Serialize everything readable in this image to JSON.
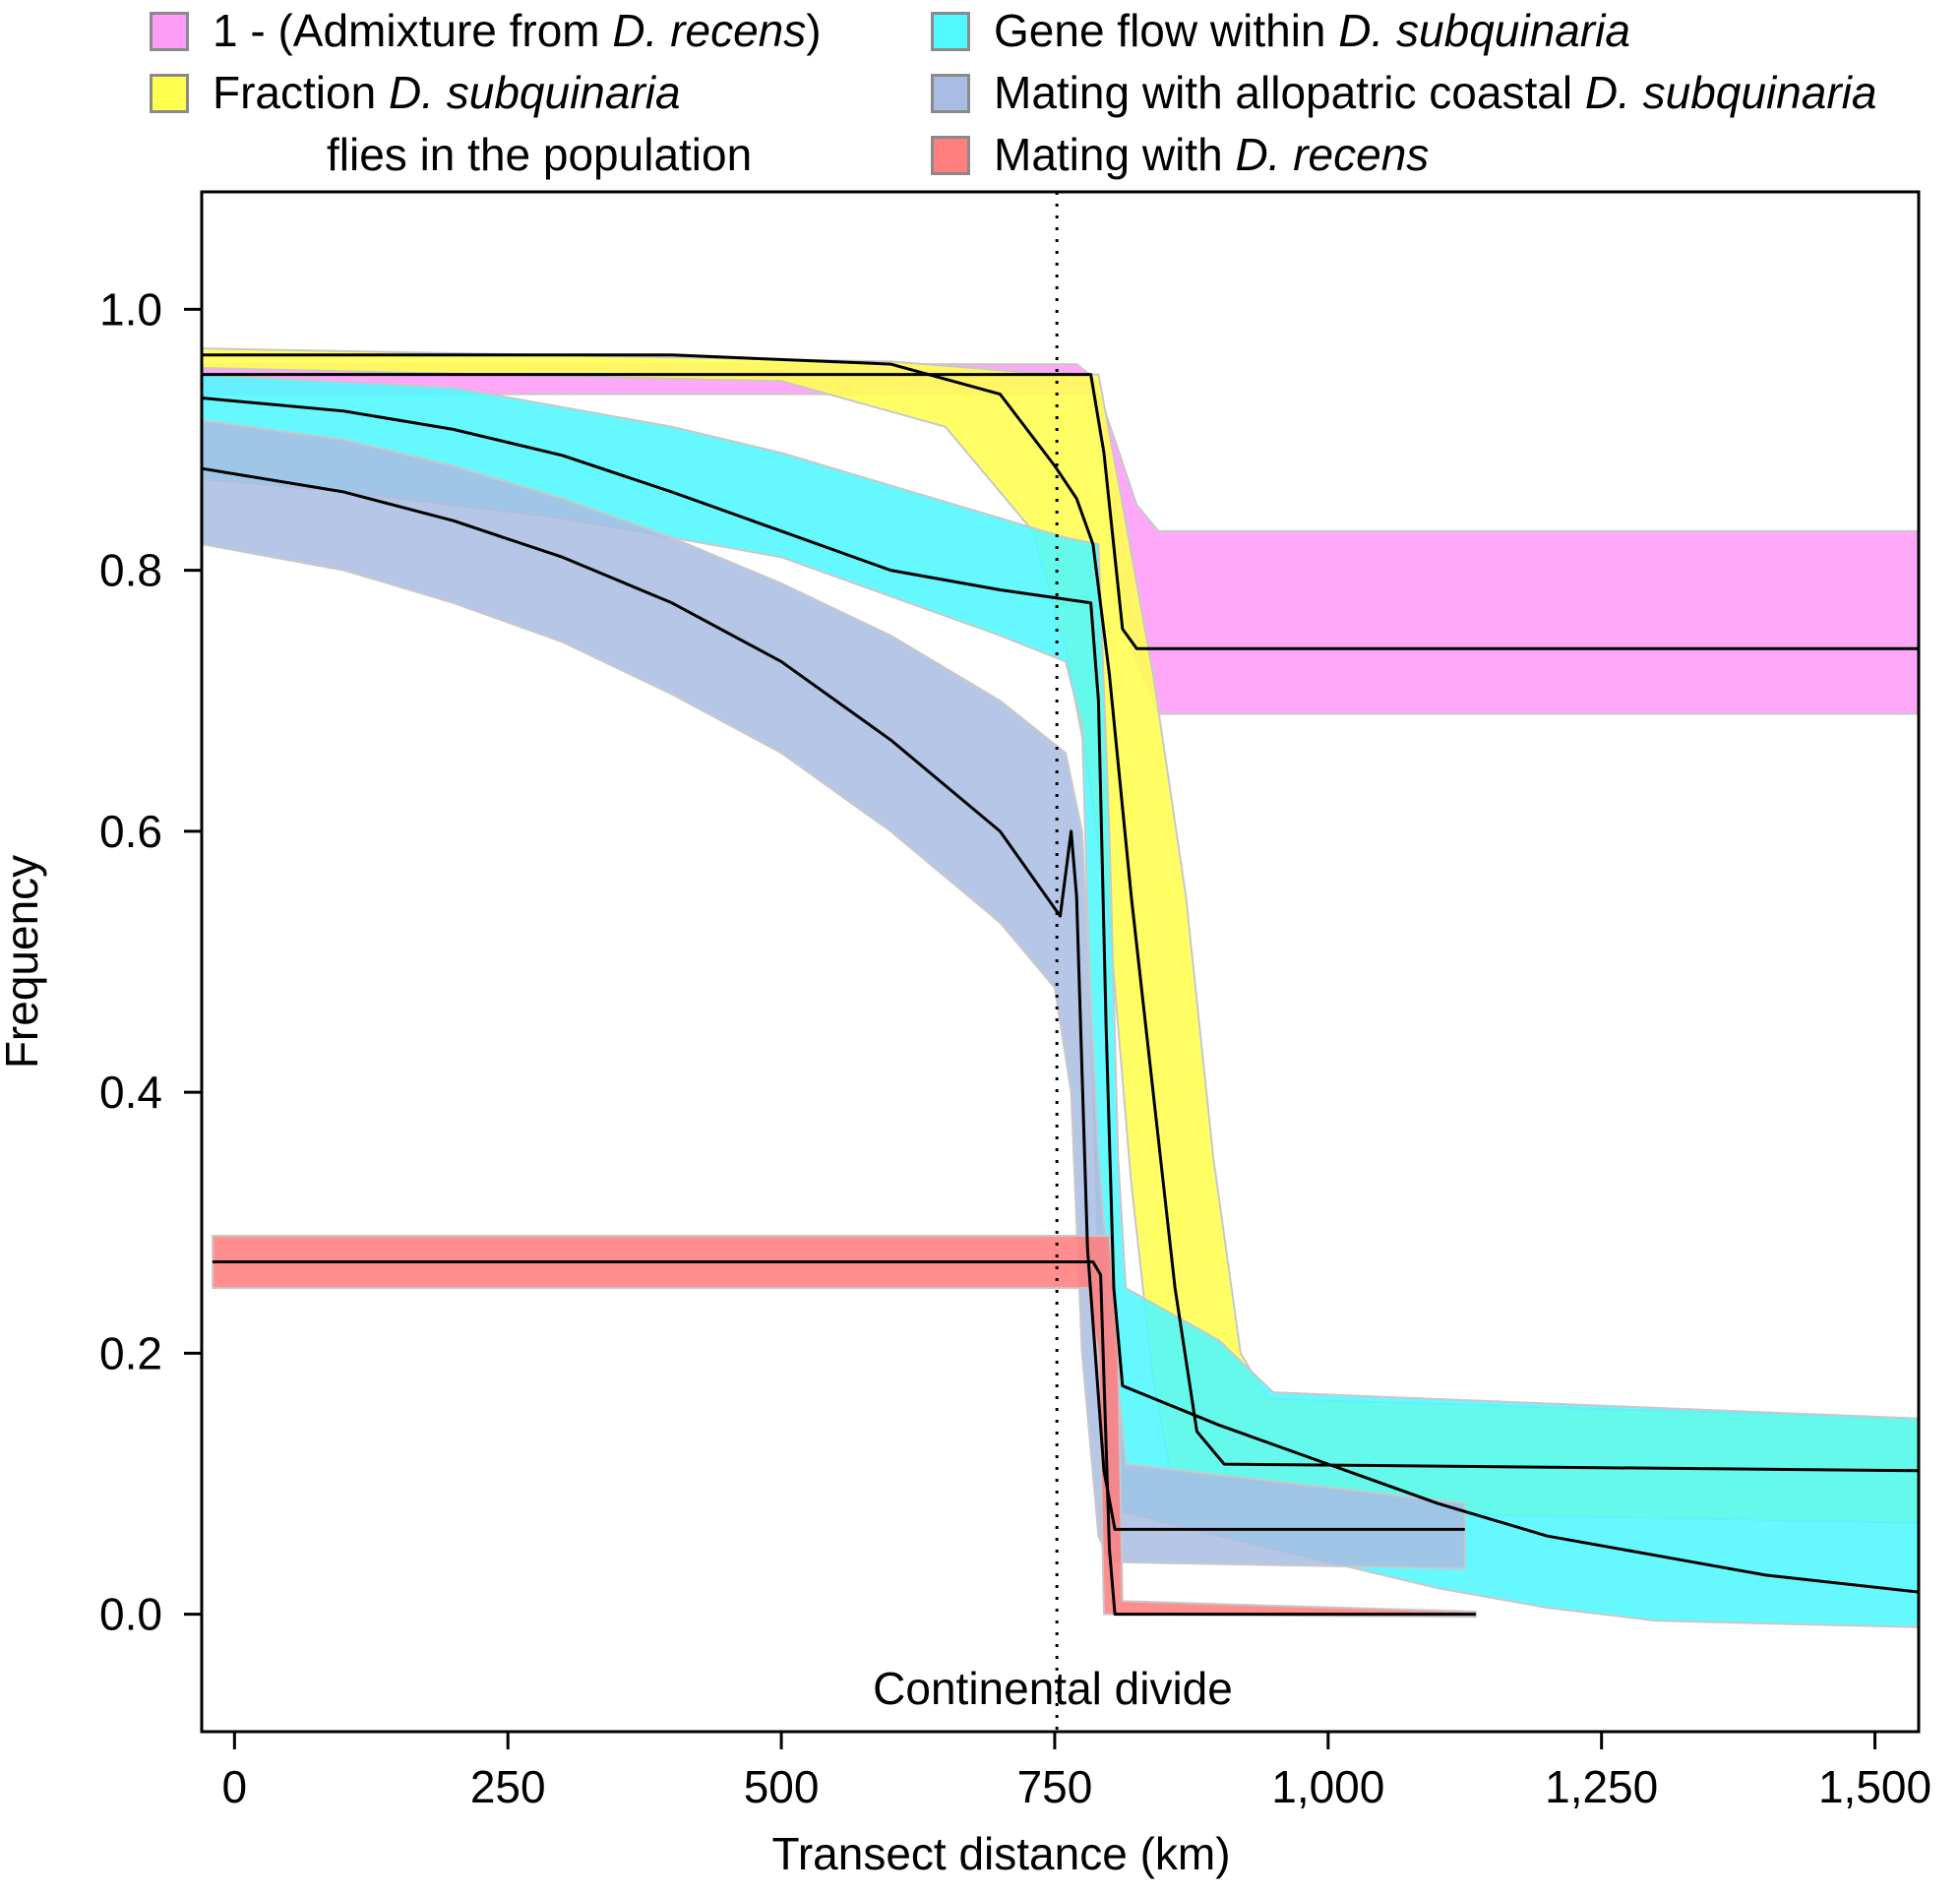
{
  "chart_data": {
    "type": "line",
    "xlabel": "Transect distance (km)",
    "ylabel": "Frequency",
    "xlim": [
      -30,
      1540
    ],
    "ylim": [
      -0.09,
      1.09
    ],
    "x_ticks": [
      0,
      250,
      500,
      750,
      1000,
      1250,
      1500
    ],
    "x_tick_labels": [
      "0",
      "250",
      "500",
      "750",
      "1,000",
      "1,250",
      "1,500"
    ],
    "y_ticks": [
      0.0,
      0.2,
      0.4,
      0.6,
      0.8,
      1.0
    ],
    "y_tick_labels": [
      "0.0",
      "0.2",
      "0.4",
      "0.6",
      "0.8",
      "1.0"
    ],
    "grid": false,
    "legend_position": "top",
    "annotations": [
      {
        "text": "Continental divide",
        "x": 752,
        "type": "vertical-dotted-line"
      }
    ],
    "series": [
      {
        "name_parts": [
          "1 - (Admixture from ",
          "D. recens",
          ")"
        ],
        "color": "#ff9cf8",
        "line": [
          [
            -30,
            0.95
          ],
          [
            783,
            0.95
          ],
          [
            795,
            0.89
          ],
          [
            812,
            0.755
          ],
          [
            825,
            0.74
          ],
          [
            1540,
            0.74
          ]
        ],
        "band_upper": [
          [
            -30,
            0.958
          ],
          [
            770,
            0.958
          ],
          [
            785,
            0.948
          ],
          [
            805,
            0.9
          ],
          [
            825,
            0.85
          ],
          [
            845,
            0.83
          ],
          [
            1540,
            0.83
          ]
        ],
        "band_lower": [
          [
            -30,
            0.935
          ],
          [
            785,
            0.935
          ],
          [
            800,
            0.84
          ],
          [
            820,
            0.74
          ],
          [
            845,
            0.69
          ],
          [
            1540,
            0.69
          ]
        ]
      },
      {
        "name_parts": [
          "Fraction ",
          "D. subquinaria",
          " flies in the population"
        ],
        "color": "#ffff50",
        "line": [
          [
            -30,
            0.965
          ],
          [
            400,
            0.965
          ],
          [
            600,
            0.958
          ],
          [
            700,
            0.935
          ],
          [
            750,
            0.88
          ],
          [
            770,
            0.855
          ],
          [
            785,
            0.82
          ],
          [
            800,
            0.72
          ],
          [
            820,
            0.55
          ],
          [
            840,
            0.4
          ],
          [
            860,
            0.25
          ],
          [
            880,
            0.14
          ],
          [
            905,
            0.115
          ],
          [
            1540,
            0.11
          ]
        ],
        "band_upper": [
          [
            -30,
            0.97
          ],
          [
            600,
            0.96
          ],
          [
            720,
            0.952
          ],
          [
            790,
            0.95
          ],
          [
            810,
            0.86
          ],
          [
            840,
            0.72
          ],
          [
            870,
            0.55
          ],
          [
            895,
            0.35
          ],
          [
            920,
            0.2
          ],
          [
            945,
            0.165
          ],
          [
            1540,
            0.15
          ]
        ],
        "band_lower": [
          [
            -30,
            0.955
          ],
          [
            500,
            0.945
          ],
          [
            650,
            0.91
          ],
          [
            730,
            0.83
          ],
          [
            760,
            0.74
          ],
          [
            780,
            0.65
          ],
          [
            800,
            0.53
          ],
          [
            820,
            0.33
          ],
          [
            840,
            0.18
          ],
          [
            860,
            0.09
          ],
          [
            890,
            0.08
          ],
          [
            1540,
            0.07
          ]
        ]
      },
      {
        "name_parts": [
          "Gene flow within ",
          "D. subquinaria"
        ],
        "color": "#50f8ff",
        "line": [
          [
            -30,
            0.932
          ],
          [
            100,
            0.922
          ],
          [
            200,
            0.908
          ],
          [
            300,
            0.888
          ],
          [
            400,
            0.86
          ],
          [
            500,
            0.83
          ],
          [
            600,
            0.8
          ],
          [
            700,
            0.785
          ],
          [
            783,
            0.775
          ],
          [
            790,
            0.7
          ],
          [
            797,
            0.45
          ],
          [
            804,
            0.25
          ],
          [
            812,
            0.175
          ],
          [
            900,
            0.145
          ],
          [
            1000,
            0.115
          ],
          [
            1100,
            0.085
          ],
          [
            1200,
            0.06
          ],
          [
            1300,
            0.045
          ],
          [
            1400,
            0.03
          ],
          [
            1540,
            0.017
          ]
        ],
        "band_upper": [
          [
            -30,
            0.95
          ],
          [
            200,
            0.94
          ],
          [
            400,
            0.91
          ],
          [
            500,
            0.89
          ],
          [
            600,
            0.865
          ],
          [
            700,
            0.84
          ],
          [
            760,
            0.825
          ],
          [
            790,
            0.82
          ],
          [
            800,
            0.6
          ],
          [
            808,
            0.35
          ],
          [
            815,
            0.25
          ],
          [
            900,
            0.21
          ],
          [
            950,
            0.17
          ],
          [
            1540,
            0.15
          ]
        ],
        "band_lower": [
          [
            -30,
            0.87
          ],
          [
            100,
            0.86
          ],
          [
            300,
            0.84
          ],
          [
            500,
            0.81
          ],
          [
            600,
            0.78
          ],
          [
            700,
            0.75
          ],
          [
            760,
            0.73
          ],
          [
            775,
            0.68
          ],
          [
            785,
            0.4
          ],
          [
            793,
            0.2
          ],
          [
            805,
            0.08
          ],
          [
            900,
            0.06
          ],
          [
            1000,
            0.04
          ],
          [
            1100,
            0.02
          ],
          [
            1200,
            0.005
          ],
          [
            1300,
            -0.005
          ],
          [
            1540,
            -0.01
          ]
        ]
      },
      {
        "name_parts": [
          "Mating with allopatric coastal ",
          "D. subquinaria"
        ],
        "color": "#a9bce3",
        "line": [
          [
            -30,
            0.878
          ],
          [
            100,
            0.86
          ],
          [
            200,
            0.838
          ],
          [
            300,
            0.81
          ],
          [
            400,
            0.775
          ],
          [
            500,
            0.73
          ],
          [
            600,
            0.67
          ],
          [
            700,
            0.6
          ],
          [
            755,
            0.535
          ],
          [
            765,
            0.6
          ],
          [
            770,
            0.55
          ],
          [
            780,
            0.28
          ],
          [
            795,
            0.11
          ],
          [
            805,
            0.065
          ],
          [
            1125,
            0.065
          ]
        ],
        "band_upper": [
          [
            -30,
            0.915
          ],
          [
            100,
            0.9
          ],
          [
            200,
            0.88
          ],
          [
            300,
            0.855
          ],
          [
            400,
            0.825
          ],
          [
            500,
            0.79
          ],
          [
            600,
            0.75
          ],
          [
            700,
            0.7
          ],
          [
            760,
            0.66
          ],
          [
            775,
            0.6
          ],
          [
            790,
            0.35
          ],
          [
            805,
            0.2
          ],
          [
            815,
            0.115
          ],
          [
            1125,
            0.085
          ]
        ],
        "band_lower": [
          [
            -30,
            0.82
          ],
          [
            100,
            0.8
          ],
          [
            200,
            0.775
          ],
          [
            300,
            0.745
          ],
          [
            400,
            0.705
          ],
          [
            500,
            0.66
          ],
          [
            600,
            0.6
          ],
          [
            700,
            0.53
          ],
          [
            750,
            0.48
          ],
          [
            765,
            0.4
          ],
          [
            775,
            0.2
          ],
          [
            790,
            0.06
          ],
          [
            800,
            0.04
          ],
          [
            1125,
            0.035
          ]
        ]
      },
      {
        "name_parts": [
          "Mating with ",
          "D. recens"
        ],
        "color": "#ff7f7f",
        "line": [
          [
            -20,
            0.27
          ],
          [
            785,
            0.27
          ],
          [
            792,
            0.26
          ],
          [
            800,
            0.05
          ],
          [
            805,
            0.0
          ],
          [
            1135,
            0.0
          ]
        ],
        "band_upper": [
          [
            -20,
            0.29
          ],
          [
            800,
            0.29
          ],
          [
            808,
            0.2
          ],
          [
            812,
            0.01
          ],
          [
            1135,
            0.002
          ]
        ],
        "band_lower": [
          [
            -20,
            0.25
          ],
          [
            780,
            0.25
          ],
          [
            790,
            0.2
          ],
          [
            795,
            0.0
          ],
          [
            1135,
            -0.002
          ]
        ]
      }
    ]
  },
  "legend": {
    "items": [
      {
        "parts": [
          "1 - (Admixture from ",
          "D. recens",
          ")"
        ],
        "color": "#ff9cf8"
      },
      {
        "parts": [
          "Fraction ",
          "D. subquinaria"
        ],
        "extra_line": "flies in the population",
        "color": "#ffff50"
      },
      {
        "parts": [
          "Gene flow within ",
          "D. subquinaria"
        ],
        "color": "#50f8ff"
      },
      {
        "parts": [
          "Mating with allopatric coastal ",
          "D. subquinaria"
        ],
        "color": "#a9bce3"
      },
      {
        "parts": [
          "Mating with ",
          "D. recens"
        ],
        "color": "#ff7f7f"
      }
    ]
  }
}
